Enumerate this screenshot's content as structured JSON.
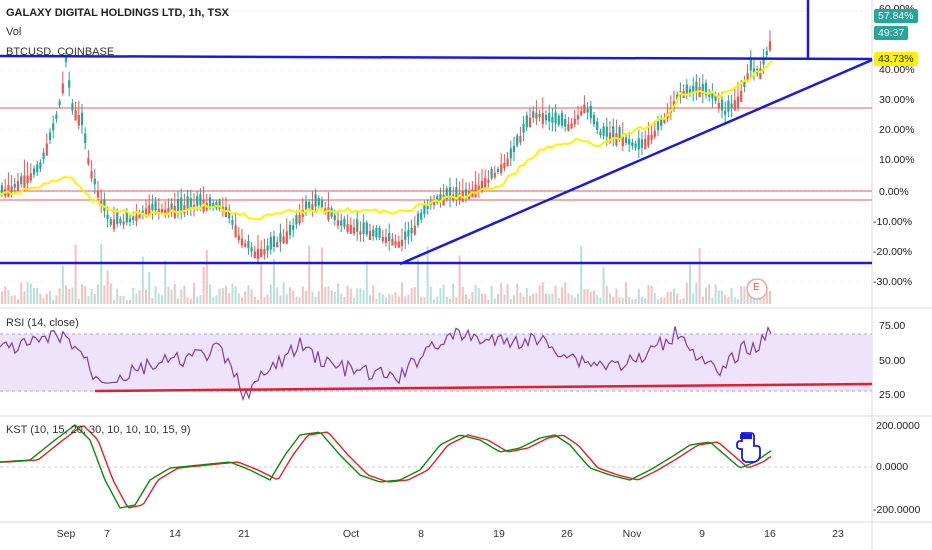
{
  "legend": {
    "title": "GALAXY DIGITAL HOLDINGS LTD, 1h, TSX",
    "vol": "Vol",
    "compare": "BTCUSD, COINBASE"
  },
  "price_axis": {
    "ticks": [
      "60.00%",
      "40.00%",
      "30.00%",
      "20.00%",
      "10.00%",
      "0.00%",
      "-10.00%",
      "-20.00%",
      "-30.00%"
    ],
    "badge_last": "57.84%",
    "badge_countdown": "49:37",
    "badge_compare": "43.73%",
    "colors": {
      "up": "#26a69a",
      "compare": "#fff200",
      "trendline": "#1a1adb",
      "hline": "#e0625e"
    }
  },
  "rsi": {
    "title": "RSI (14, close)",
    "ticks": [
      "75.00",
      "50.00",
      "25.00"
    ],
    "color": "#7e3ea3",
    "band_color": "#efe3fb",
    "support_color": "#e0202a"
  },
  "kst": {
    "title": "KST (10, 15, 20, 30, 10, 10, 10, 15, 9)",
    "ticks": [
      "200.0000",
      "0.0000",
      "-200.0000"
    ],
    "colors": {
      "kst": "#0a8a0a",
      "signal": "#e0202a"
    }
  },
  "time_axis": {
    "ticks": [
      "Sep",
      "7",
      "14",
      "21",
      "Oct",
      "8",
      "19",
      "26",
      "Nov",
      "9",
      "16",
      "23"
    ]
  },
  "earnings_marker": "E"
}
